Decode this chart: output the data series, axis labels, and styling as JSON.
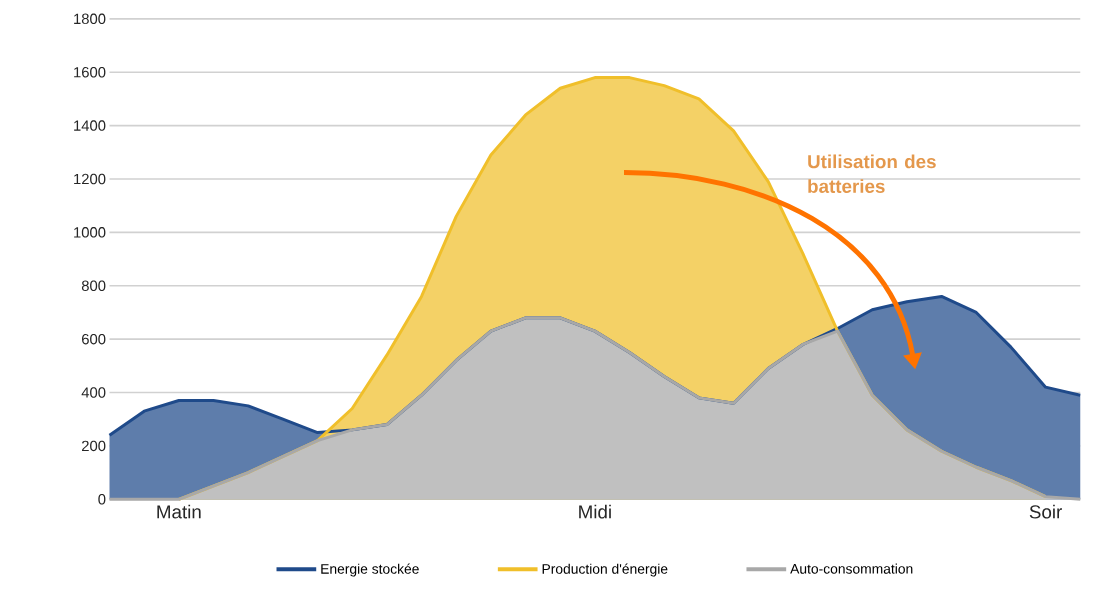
{
  "chart_data": {
    "type": "area",
    "categories": [
      null,
      null,
      "Matin",
      null,
      null,
      null,
      null,
      null,
      null,
      null,
      null,
      null,
      null,
      null,
      "Midi",
      null,
      null,
      null,
      null,
      null,
      null,
      null,
      null,
      null,
      null,
      null,
      null,
      "Soir",
      null
    ],
    "ylim": [
      0,
      1800
    ],
    "yticks": [
      0,
      200,
      400,
      600,
      800,
      1000,
      1200,
      1400,
      1600,
      1800
    ],
    "grid": "y",
    "legend": "bottom",
    "marker": "none",
    "series": [
      {
        "name": "Energie stockée",
        "color": "#1f4a8a",
        "values": [
          240,
          330,
          370,
          370,
          350,
          300,
          250,
          260,
          280,
          390,
          520,
          630,
          680,
          680,
          630,
          550,
          460,
          380,
          360,
          490,
          580,
          640,
          710,
          740,
          760,
          700,
          570,
          420,
          390
        ]
      },
      {
        "name": "Production d'énergie",
        "color": "#f0bf2a",
        "values": [
          null,
          null,
          0,
          50,
          100,
          160,
          220,
          340,
          540,
          760,
          1060,
          1290,
          1440,
          1540,
          1580,
          1580,
          1550,
          1500,
          1380,
          1190,
          920,
          630,
          390,
          260,
          180,
          120,
          70,
          10,
          null
        ]
      },
      {
        "name": "Auto-consommation",
        "color": "#a8a8a8",
        "values": [
          0,
          0,
          0,
          50,
          100,
          160,
          220,
          260,
          280,
          390,
          520,
          630,
          680,
          680,
          630,
          550,
          460,
          380,
          360,
          490,
          580,
          630,
          390,
          260,
          180,
          120,
          70,
          10,
          0
        ]
      }
    ],
    "annotations": [
      "Utilisation des batteries"
    ]
  }
}
